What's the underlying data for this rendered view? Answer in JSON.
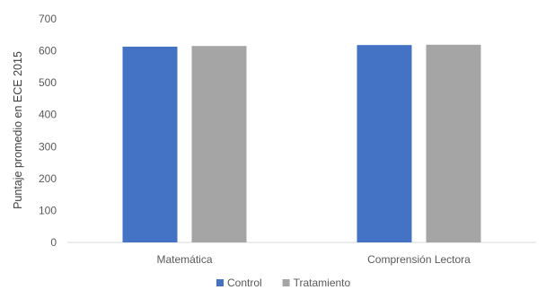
{
  "chart_data": {
    "type": "bar",
    "title": "",
    "xlabel": "",
    "ylabel": "Puntaje promedio en ECE 2015",
    "ylim": [
      0,
      700
    ],
    "yticks": [
      0,
      100,
      200,
      300,
      400,
      500,
      600,
      700
    ],
    "categories": [
      "Matemática",
      "Comprensión Lectora"
    ],
    "series": [
      {
        "name": "Control",
        "values": [
          613,
          618
        ],
        "color": "#4472C4"
      },
      {
        "name": "Tratamiento",
        "values": [
          615,
          619
        ],
        "color": "#A5A5A5"
      }
    ],
    "grid": false,
    "legend_position": "bottom"
  }
}
